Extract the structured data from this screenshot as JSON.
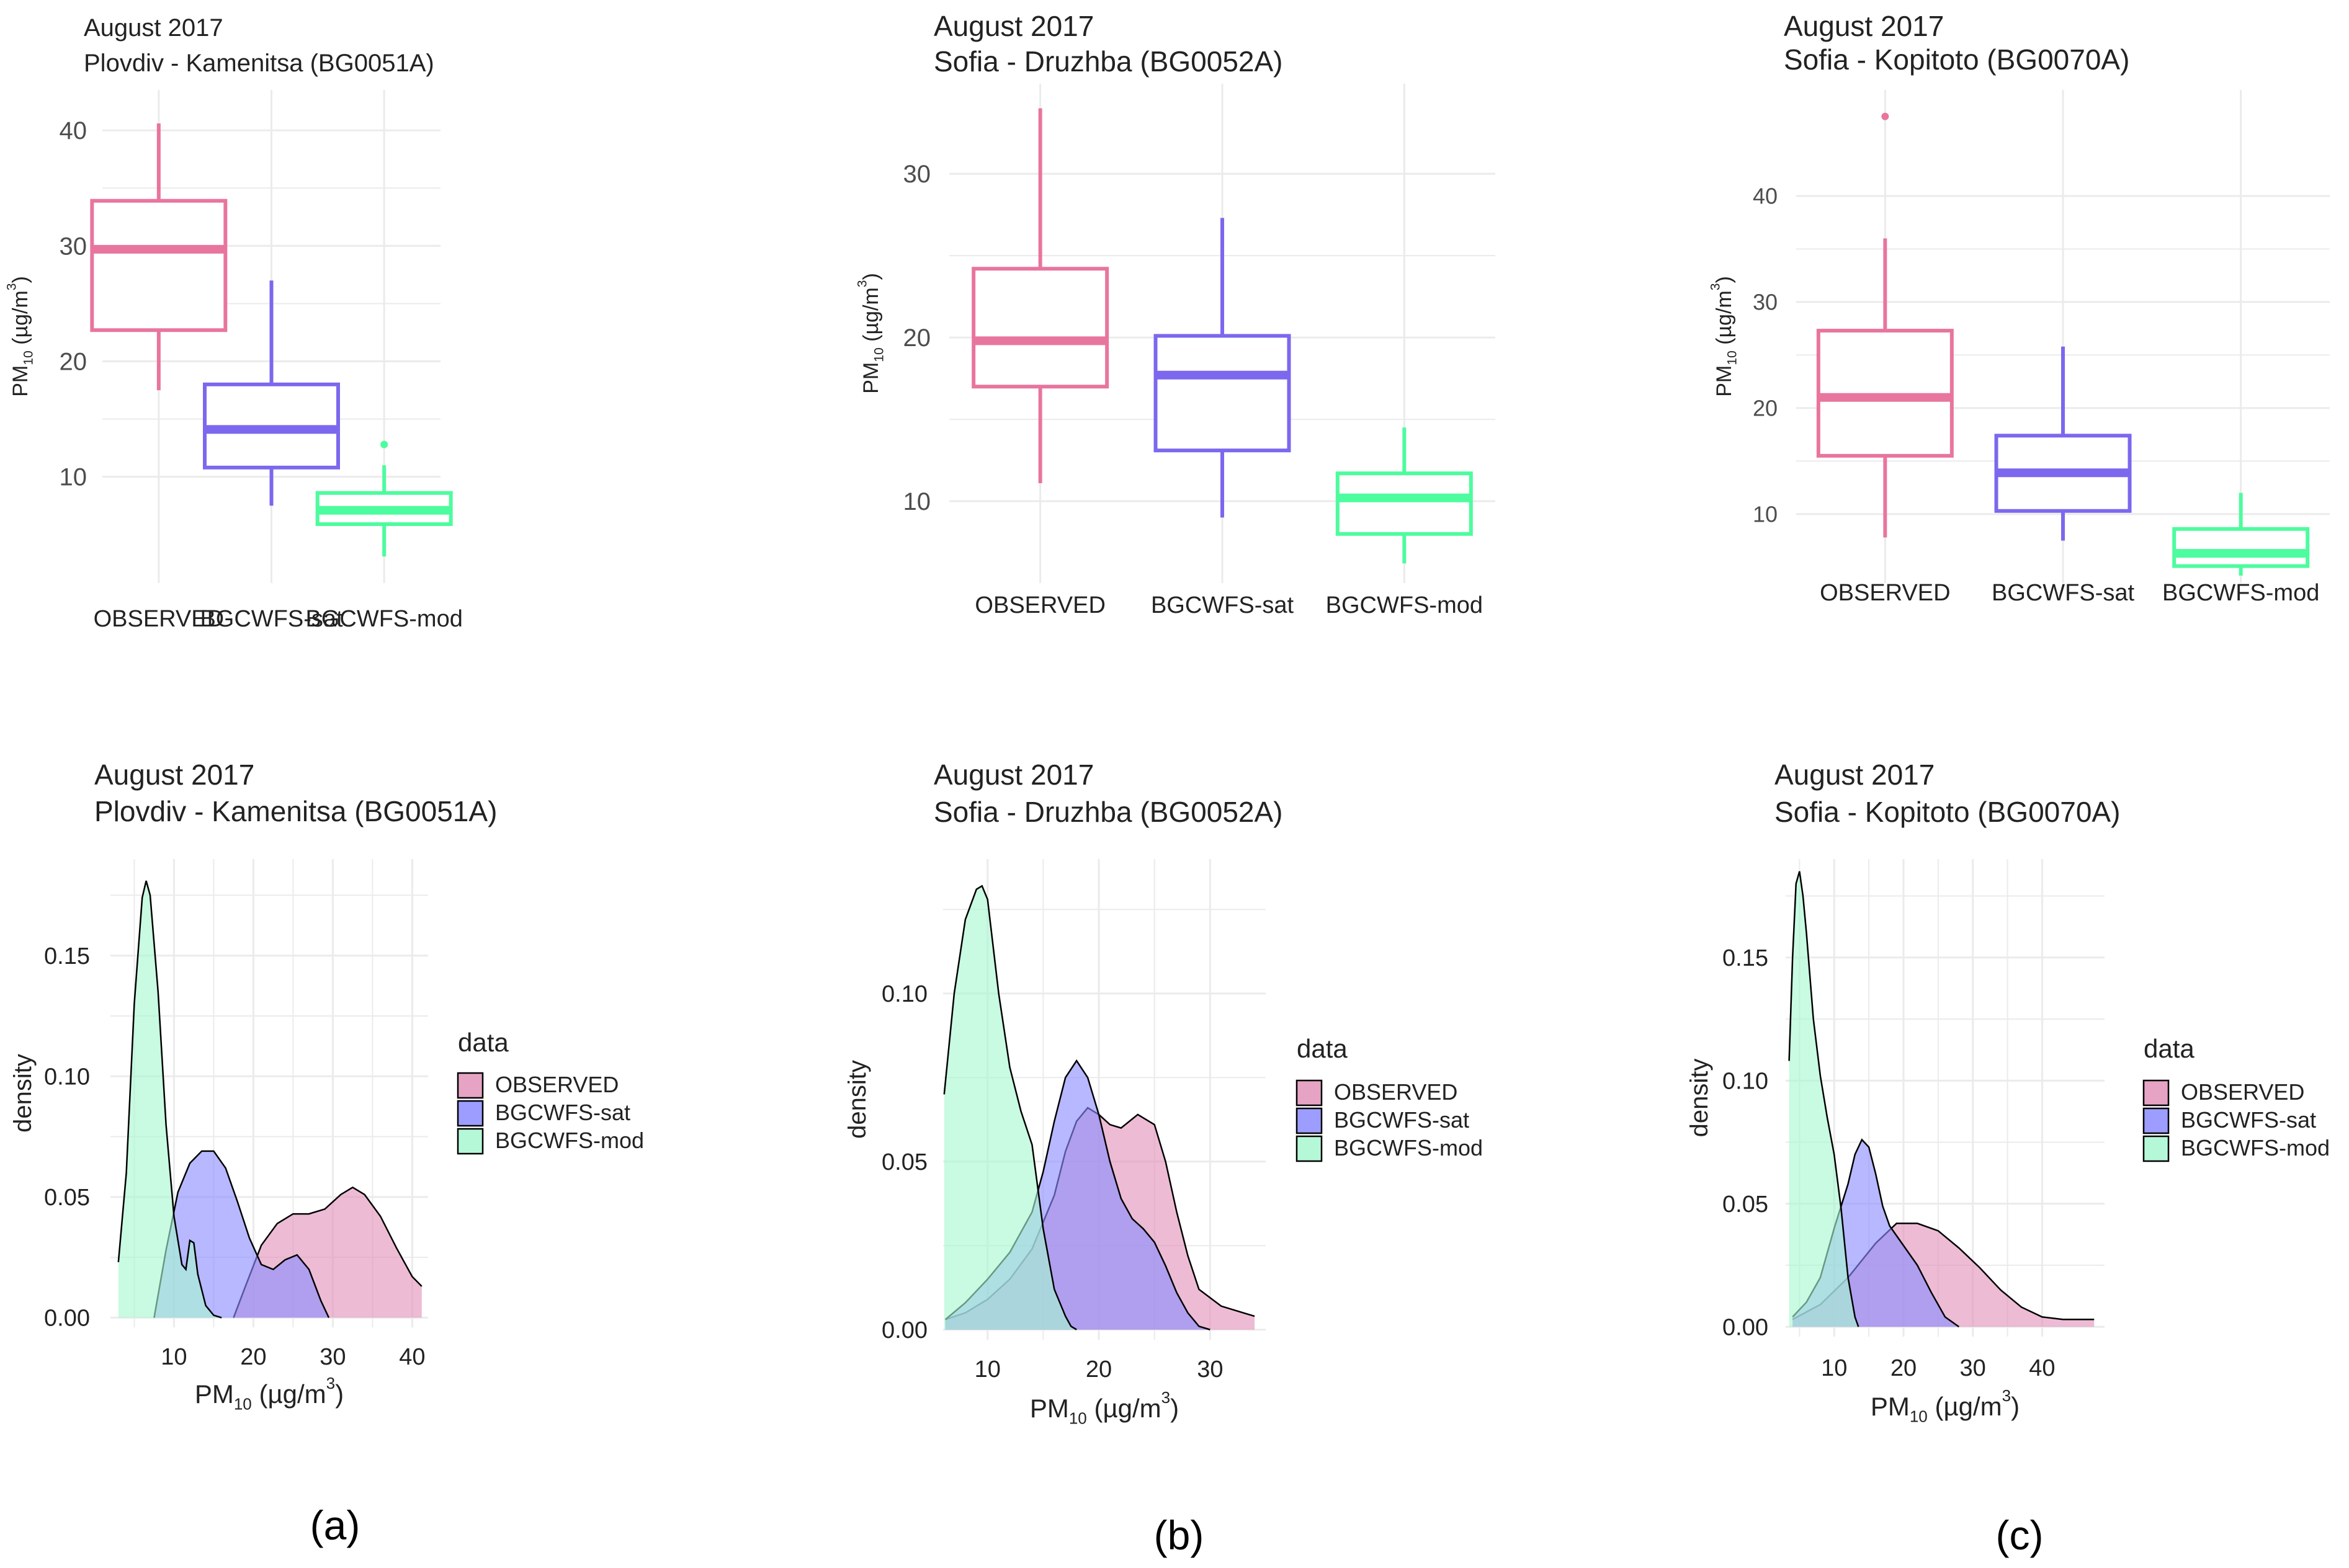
{
  "figure": {
    "panel_labels": [
      "(a)",
      "(b)",
      "(c)"
    ]
  },
  "colors": {
    "observed": "#e8759e",
    "sat": "#7b68ee",
    "mod": "#4dfc9e",
    "observed_fill": "#e293b9",
    "sat_fill": "#8b8cff",
    "mod_fill": "#a8f7d1",
    "grid": "#ebebeb",
    "text": "#222222",
    "axis_text": "#4d4d4d"
  },
  "chart_data": [
    {
      "type": "box",
      "panel": "a",
      "title": "August 2017",
      "subtitle": "Plovdiv - Kamenitsa (BG0051A)",
      "xlabel": "",
      "ylabel": "PM10 (µg/m3)",
      "ylim": [
        0.8,
        43.5
      ],
      "yticks": [
        10,
        20,
        30,
        40
      ],
      "grid": true,
      "categories": [
        "OBSERVED",
        "BGCWFS-sat",
        "BGCWFS-mod"
      ],
      "series": [
        {
          "name": "OBSERVED",
          "whisker_low": 17.5,
          "q1": 22.7,
          "median": 29.7,
          "q3": 33.9,
          "whisker_high": 40.6,
          "outliers": []
        },
        {
          "name": "BGCWFS-sat",
          "whisker_low": 7.5,
          "q1": 10.8,
          "median": 14.1,
          "q3": 18.0,
          "whisker_high": 27.0,
          "outliers": []
        },
        {
          "name": "BGCWFS-mod",
          "whisker_low": 3.1,
          "q1": 5.9,
          "median": 7.1,
          "q3": 8.6,
          "whisker_high": 11.0,
          "outliers": [
            12.8
          ]
        }
      ]
    },
    {
      "type": "box",
      "panel": "b",
      "title": "August 2017",
      "subtitle": "Sofia - Druzhba (BG0052A)",
      "xlabel": "",
      "ylabel": "PM10 (µg/m3)",
      "ylim": [
        5.0,
        35.5
      ],
      "yticks": [
        10,
        20,
        30
      ],
      "grid": true,
      "categories": [
        "OBSERVED",
        "BGCWFS-sat",
        "BGCWFS-mod"
      ],
      "series": [
        {
          "name": "OBSERVED",
          "whisker_low": 11.1,
          "q1": 17.0,
          "median": 19.8,
          "q3": 24.2,
          "whisker_high": 34.0,
          "outliers": []
        },
        {
          "name": "BGCWFS-sat",
          "whisker_low": 9.0,
          "q1": 13.1,
          "median": 17.7,
          "q3": 20.1,
          "whisker_high": 27.3,
          "outliers": []
        },
        {
          "name": "BGCWFS-mod",
          "whisker_low": 6.2,
          "q1": 8.0,
          "median": 10.2,
          "q3": 11.7,
          "whisker_high": 14.5,
          "outliers": []
        }
      ]
    },
    {
      "type": "box",
      "panel": "c",
      "title": "August 2017",
      "subtitle": "Sofia - Kopitoto (BG0070A)",
      "xlabel": "",
      "ylabel": "PM10 (µg/m3)",
      "ylim": [
        3.5,
        50.0
      ],
      "yticks": [
        10,
        20,
        30,
        40
      ],
      "grid": true,
      "categories": [
        "OBSERVED",
        "BGCWFS-sat",
        "BGCWFS-mod"
      ],
      "series": [
        {
          "name": "OBSERVED",
          "whisker_low": 7.8,
          "q1": 15.5,
          "median": 21.0,
          "q3": 27.3,
          "whisker_high": 36.0,
          "outliers": [
            47.5
          ]
        },
        {
          "name": "BGCWFS-sat",
          "whisker_low": 7.5,
          "q1": 10.3,
          "median": 13.9,
          "q3": 17.4,
          "whisker_high": 25.8,
          "outliers": []
        },
        {
          "name": "BGCWFS-mod",
          "whisker_low": 4.2,
          "q1": 5.1,
          "median": 6.3,
          "q3": 8.6,
          "whisker_high": 12.0,
          "outliers": []
        }
      ]
    },
    {
      "type": "area",
      "panel": "a",
      "title": "August 2017",
      "subtitle": "Plovdiv - Kamenitsa (BG0051A)",
      "xlabel": "PM10 (µg/m3)",
      "ylabel": "density",
      "xlim": [
        2,
        42
      ],
      "ylim": [
        -0.004,
        0.19
      ],
      "xticks": [
        10,
        20,
        30,
        40
      ],
      "yticks": [
        0.0,
        0.05,
        0.1,
        0.15
      ],
      "ytick_labels": [
        "0.00",
        "0.05",
        "0.10",
        "0.15"
      ],
      "grid": true,
      "legend": {
        "title": "data",
        "position": "right",
        "entries": [
          "OBSERVED",
          "BGCWFS-sat",
          "BGCWFS-mod"
        ]
      },
      "series": [
        {
          "name": "OBSERVED",
          "x": [
            17.5,
            19,
            21,
            23,
            25,
            27,
            29,
            31,
            32.5,
            34,
            36,
            38,
            40,
            41.2
          ],
          "y": [
            0.0,
            0.013,
            0.03,
            0.039,
            0.043,
            0.043,
            0.045,
            0.051,
            0.054,
            0.051,
            0.042,
            0.029,
            0.017,
            0.013
          ]
        },
        {
          "name": "BGCWFS-sat",
          "x": [
            7.5,
            9,
            10.5,
            12,
            13.5,
            15,
            16.5,
            18,
            19.5,
            21,
            22.5,
            24,
            25.5,
            27,
            28.5,
            29.5
          ],
          "y": [
            0.0,
            0.028,
            0.052,
            0.064,
            0.069,
            0.069,
            0.062,
            0.048,
            0.033,
            0.022,
            0.02,
            0.024,
            0.026,
            0.02,
            0.007,
            0.0
          ]
        },
        {
          "name": "BGCWFS-mod",
          "x": [
            3.0,
            4,
            5,
            6,
            6.5,
            7,
            8,
            9,
            10,
            11,
            11.5,
            12,
            12.5,
            13,
            14,
            15,
            16
          ],
          "y": [
            0.023,
            0.06,
            0.13,
            0.174,
            0.181,
            0.175,
            0.135,
            0.08,
            0.042,
            0.022,
            0.02,
            0.032,
            0.031,
            0.018,
            0.005,
            0.001,
            0.0
          ]
        }
      ]
    },
    {
      "type": "area",
      "panel": "b",
      "title": "August 2017",
      "subtitle": "Sofia - Druzhba (BG0052A)",
      "xlabel": "PM10 (µg/m3)",
      "ylabel": "density",
      "xlim": [
        6,
        35
      ],
      "ylim": [
        -0.003,
        0.14
      ],
      "xticks": [
        10,
        20,
        30
      ],
      "yticks": [
        0.0,
        0.05,
        0.1
      ],
      "ytick_labels": [
        "0.00",
        "0.05",
        "0.10"
      ],
      "grid": true,
      "legend": {
        "title": "data",
        "position": "right",
        "entries": [
          "OBSERVED",
          "BGCWFS-sat",
          "BGCWFS-mod"
        ]
      },
      "series": [
        {
          "name": "OBSERVED",
          "x": [
            6.2,
            8,
            10,
            12,
            14,
            16,
            17,
            18,
            19,
            20,
            21,
            22,
            23.5,
            25,
            26,
            27,
            28,
            29,
            31,
            33,
            34
          ],
          "y": [
            0.003,
            0.005,
            0.009,
            0.015,
            0.024,
            0.04,
            0.053,
            0.062,
            0.066,
            0.064,
            0.061,
            0.06,
            0.064,
            0.061,
            0.05,
            0.035,
            0.022,
            0.012,
            0.007,
            0.005,
            0.004
          ]
        },
        {
          "name": "BGCWFS-sat",
          "x": [
            6.2,
            8,
            10,
            12,
            14,
            15,
            16,
            17,
            18,
            19,
            20,
            21,
            22,
            23,
            24,
            25,
            26,
            27,
            28,
            29,
            30
          ],
          "y": [
            0.003,
            0.008,
            0.015,
            0.023,
            0.035,
            0.047,
            0.062,
            0.075,
            0.08,
            0.075,
            0.064,
            0.05,
            0.039,
            0.033,
            0.03,
            0.026,
            0.019,
            0.011,
            0.005,
            0.001,
            0.0
          ]
        },
        {
          "name": "BGCWFS-mod",
          "x": [
            6.1,
            7,
            8,
            9,
            9.5,
            10,
            11,
            12,
            13,
            14,
            15,
            16,
            17,
            17.5,
            18
          ],
          "y": [
            0.07,
            0.1,
            0.122,
            0.131,
            0.132,
            0.128,
            0.1,
            0.078,
            0.065,
            0.055,
            0.03,
            0.012,
            0.004,
            0.001,
            0.0
          ]
        }
      ]
    },
    {
      "type": "area",
      "panel": "c",
      "title": "August 2017",
      "subtitle": "Sofia - Kopitoto (BG0070A)",
      "xlabel": "PM10 (µg/m3)",
      "ylabel": "density",
      "xlim": [
        3,
        49
      ],
      "ylim": [
        -0.004,
        0.19
      ],
      "xticks": [
        10,
        20,
        30,
        40
      ],
      "yticks": [
        0.0,
        0.05,
        0.1,
        0.15
      ],
      "ytick_labels": [
        "0.00",
        "0.05",
        "0.10",
        "0.15"
      ],
      "grid": true,
      "legend": {
        "title": "data",
        "position": "right",
        "entries": [
          "OBSERVED",
          "BGCWFS-sat",
          "BGCWFS-mod"
        ]
      },
      "series": [
        {
          "name": "OBSERVED",
          "x": [
            4,
            8,
            12,
            16,
            19,
            22,
            25,
            28,
            31,
            34,
            37,
            40,
            43,
            45,
            47.5
          ],
          "y": [
            0.003,
            0.009,
            0.02,
            0.034,
            0.042,
            0.042,
            0.039,
            0.032,
            0.024,
            0.015,
            0.008,
            0.004,
            0.003,
            0.003,
            0.003
          ]
        },
        {
          "name": "BGCWFS-sat",
          "x": [
            4,
            6,
            8,
            10,
            12,
            13,
            14,
            15,
            16,
            17,
            18,
            20,
            22,
            24,
            26,
            28
          ],
          "y": [
            0.004,
            0.01,
            0.02,
            0.04,
            0.058,
            0.07,
            0.076,
            0.073,
            0.062,
            0.049,
            0.041,
            0.033,
            0.025,
            0.014,
            0.004,
            0.0
          ]
        },
        {
          "name": "BGCWFS-mod",
          "x": [
            3.5,
            4,
            4.5,
            5,
            5.5,
            6,
            7,
            8,
            9,
            10,
            11,
            12,
            13,
            13.5
          ],
          "y": [
            0.108,
            0.15,
            0.18,
            0.185,
            0.175,
            0.16,
            0.125,
            0.102,
            0.085,
            0.07,
            0.048,
            0.02,
            0.004,
            0.0
          ]
        }
      ]
    }
  ]
}
